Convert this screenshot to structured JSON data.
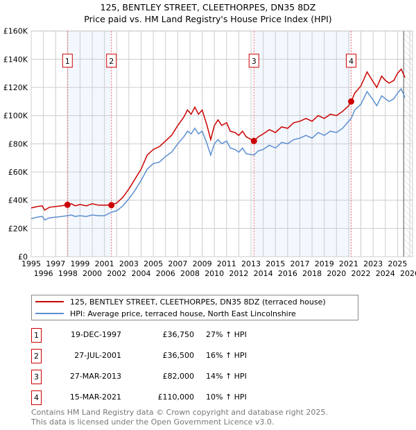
{
  "chart_data": {
    "type": "line",
    "title": "125, BENTLEY STREET, CLEETHORPES, DN35 8DZ",
    "subtitle": "Price paid vs. HM Land Registry's House Price Index (HPI)",
    "xlabel": "",
    "ylabel": "",
    "xlim": [
      1995,
      2026
    ],
    "ylim": [
      0,
      160000
    ],
    "x_ticks": [
      "1995",
      "1996",
      "1997",
      "1998",
      "1999",
      "2000",
      "2001",
      "2002",
      "2003",
      "2004",
      "2005",
      "2006",
      "2007",
      "2008",
      "2009",
      "2010",
      "2011",
      "2012",
      "2013",
      "2014",
      "2015",
      "2016",
      "2017",
      "2018",
      "2019",
      "2020",
      "2021",
      "2022",
      "2023",
      "2024",
      "2025",
      "2026"
    ],
    "y_ticks": [
      {
        "value": 0,
        "label": "£0"
      },
      {
        "value": 20000,
        "label": "£20K"
      },
      {
        "value": 40000,
        "label": "£40K"
      },
      {
        "value": 60000,
        "label": "£60K"
      },
      {
        "value": 80000,
        "label": "£80K"
      },
      {
        "value": 100000,
        "label": "£100K"
      },
      {
        "value": 120000,
        "label": "£120K"
      },
      {
        "value": 140000,
        "label": "£140K"
      },
      {
        "value": 160000,
        "label": "£160K"
      }
    ],
    "grid": true,
    "forecast_hatch_from": 2025.5,
    "shaded_periods": [
      [
        1997.97,
        2001.57
      ],
      [
        2013.24,
        2021.2
      ]
    ],
    "x": [
      1995.0,
      1995.5,
      1995.9,
      1996.1,
      1996.5,
      1997,
      1997.5,
      1997.97,
      1998.3,
      1998.6,
      1999,
      1999.5,
      2000,
      2000.5,
      2001,
      2001.57,
      2002,
      2002.5,
      2003,
      2003.5,
      2004,
      2004.5,
      2005,
      2005.5,
      2006,
      2006.5,
      2007,
      2007.5,
      2007.8,
      2008.1,
      2008.4,
      2008.7,
      2009,
      2009.4,
      2009.7,
      2010,
      2010.3,
      2010.6,
      2011,
      2011.3,
      2011.7,
      2012,
      2012.3,
      2012.6,
      2013.24,
      2013.6,
      2014,
      2014.5,
      2015,
      2015.5,
      2016,
      2016.5,
      2017,
      2017.5,
      2018,
      2018.5,
      2019,
      2019.5,
      2020,
      2020.5,
      2021,
      2021.2,
      2021.5,
      2022,
      2022.5,
      2023,
      2023.3,
      2023.7,
      2024,
      2024.3,
      2024.7,
      2025,
      2025.3,
      2025.6
    ],
    "series": [
      {
        "name": "125, BENTLEY STREET, CLEETHORPES, DN35 8DZ (terraced house)",
        "color": "#cc0000",
        "values": [
          34500,
          35500,
          36000,
          33000,
          35000,
          35500,
          36000,
          36750,
          37500,
          36000,
          37000,
          36000,
          37500,
          36500,
          36500,
          36500,
          38000,
          42000,
          48000,
          55000,
          62000,
          72000,
          76000,
          78000,
          82000,
          86000,
          93000,
          99000,
          104000,
          101000,
          106000,
          101000,
          104000,
          93000,
          83000,
          93000,
          97000,
          93000,
          95000,
          89000,
          88000,
          86000,
          89000,
          85000,
          82000,
          85000,
          87000,
          90000,
          88000,
          92000,
          91000,
          95000,
          96000,
          98000,
          96000,
          100000,
          98000,
          101000,
          100000,
          103000,
          107000,
          110000,
          116000,
          121000,
          131000,
          124000,
          120000,
          128000,
          125000,
          123000,
          125000,
          130000,
          133000,
          127000
        ]
      },
      {
        "name": "HPI: Average price, terraced house, North East Lincolnshire",
        "color": "#5b8fd0",
        "values": [
          27000,
          28000,
          28500,
          26000,
          27500,
          28000,
          28500,
          29000,
          29500,
          28500,
          29000,
          28500,
          29500,
          29000,
          29000,
          31500,
          32500,
          36000,
          41000,
          47000,
          54000,
          62000,
          66000,
          67000,
          71000,
          74000,
          80000,
          85000,
          89000,
          87000,
          91000,
          87000,
          89000,
          80000,
          72000,
          80000,
          83000,
          80000,
          82000,
          77000,
          76000,
          74000,
          77000,
          73000,
          72000,
          75000,
          76000,
          79000,
          77000,
          81000,
          80000,
          83000,
          84000,
          86000,
          84000,
          88000,
          86000,
          89000,
          88000,
          91000,
          96000,
          98000,
          104000,
          108000,
          117000,
          111000,
          107000,
          114000,
          112000,
          110000,
          112000,
          116000,
          119000,
          113000
        ]
      }
    ],
    "sales": [
      {
        "id": "1",
        "x": 1997.97,
        "date": "19-DEC-1997",
        "price": 36750,
        "price_label": "£36,750",
        "hpi": "27% ↑ HPI"
      },
      {
        "id": "2",
        "x": 2001.57,
        "date": "27-JUL-2001",
        "price": 36500,
        "price_label": "£36,500",
        "hpi": "16% ↑ HPI"
      },
      {
        "id": "3",
        "x": 2013.24,
        "date": "27-MAR-2013",
        "price": 82000,
        "price_label": "£82,000",
        "hpi": "14% ↑ HPI"
      },
      {
        "id": "4",
        "x": 2021.2,
        "date": "15-MAR-2021",
        "price": 110000,
        "price_label": "£110,000",
        "hpi": "10% ↑ HPI"
      }
    ],
    "legend_position": "bottom"
  },
  "footer": {
    "line1": "Contains HM Land Registry data © Crown copyright and database right 2025.",
    "line2": "This data is licensed under the Open Government Licence v3.0."
  }
}
